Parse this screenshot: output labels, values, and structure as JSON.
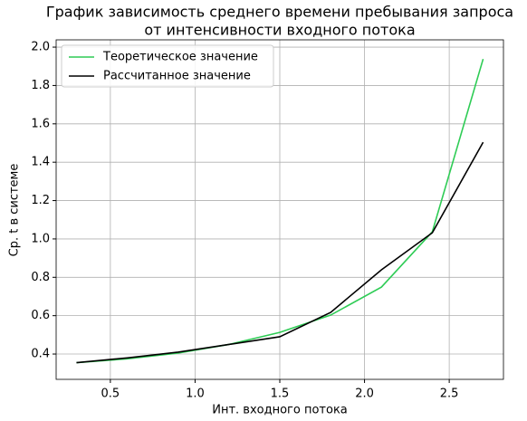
{
  "chart_data": {
    "type": "line",
    "title": [
      "График зависимость среднего времени пребывания запроса",
      "от интенсивности входного потока"
    ],
    "x_label": "Инт. входного потока",
    "y_label": "Ср. t в системе",
    "x": [
      0.3,
      0.6,
      0.9,
      1.2,
      1.5,
      1.8,
      2.1,
      2.4,
      2.7
    ],
    "series": [
      {
        "name": "Теоретическое значение",
        "color": "#2ecc55",
        "values": [
          0.355,
          0.375,
          0.405,
          0.45,
          0.513,
          0.603,
          0.749,
          1.037,
          1.938
        ]
      },
      {
        "name": "Рассчитанное значение",
        "color": "#000000",
        "values": [
          0.355,
          0.38,
          0.41,
          0.45,
          0.49,
          0.617,
          0.839,
          1.032,
          1.504
        ]
      }
    ],
    "xlim": [
      0.18,
      2.82
    ],
    "ylim": [
      0.268,
      2.038
    ],
    "xticks": [
      0.5,
      {
        "value": 1,
        "label": "1.0"
      },
      1.5,
      {
        "value": 2,
        "label": "2.0"
      },
      2.5
    ],
    "yticks": [
      0.4,
      0.6,
      0.8,
      {
        "value": 1,
        "label": "1.0"
      },
      1.2,
      1.4,
      1.6,
      1.8,
      {
        "value": 2,
        "label": "2.0"
      }
    ],
    "grid": true,
    "legend": "upper left"
  }
}
